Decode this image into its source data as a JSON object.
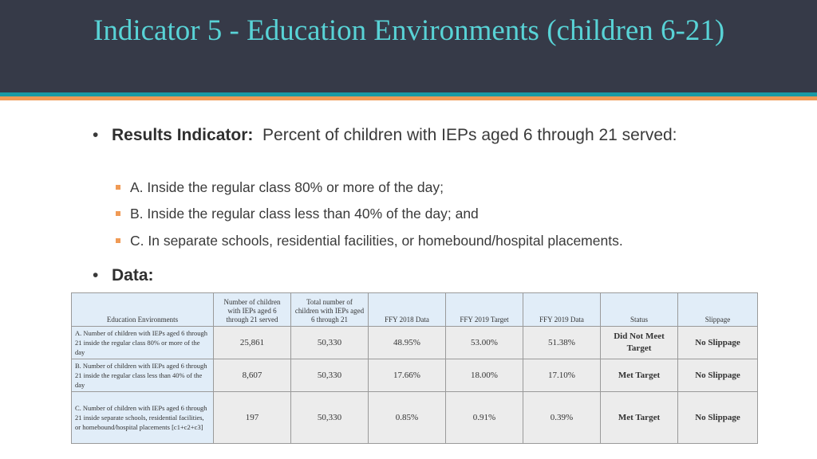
{
  "slide": {
    "title": "Indicator 5 - Education Environments (children 6-21)"
  },
  "colors": {
    "header_bg": "#363a48",
    "title": "#58d3d6",
    "stripe_teal": "#1a9aa5",
    "stripe_orange": "#f09a55",
    "status_red": "#e0201b",
    "status_green": "#2aa43a"
  },
  "results": {
    "label": "Results Indicator:",
    "text": "Percent of children with IEPs aged 6 through 21 served:",
    "items": [
      "A.  Inside the regular class 80% or more of the day;",
      "B.  Inside the regular class less than 40% of the day; and",
      "C.  In separate schools, residential facilities, or homebound/hospital placements."
    ]
  },
  "data_label": "Data:",
  "table": {
    "headers": [
      "Education Environments",
      "Number of children with IEPs aged 6 through 21 served",
      "Total number of children with IEPs aged 6 through 21",
      "FFY 2018 Data",
      "FFY 2019 Target",
      "FFY 2019 Data",
      "Status",
      "Slippage"
    ],
    "rows": [
      {
        "label": "A. Number of children with IEPs aged 6 through 21 inside the regular class 80% or more of the day",
        "served": "25,861",
        "total": "50,330",
        "ffy2018": "48.95%",
        "target2019": "53.00%",
        "ffy2019": "51.38%",
        "status": "Did Not Meet Target",
        "slippage": "No Slippage"
      },
      {
        "label": "B. Number of children with IEPs aged 6 through 21 inside the regular class less than 40% of the day",
        "served": "8,607",
        "total": "50,330",
        "ffy2018": "17.66%",
        "target2019": "18.00%",
        "ffy2019": "17.10%",
        "status": "Met Target",
        "slippage": "No Slippage"
      },
      {
        "label": "C. Number of children with IEPs aged 6 through 21 inside separate schools, residential facilities, or homebound/hospital placements [c1+c2+c3]",
        "served": "197",
        "total": "50,330",
        "ffy2018": "0.85%",
        "target2019": "0.91%",
        "ffy2019": "0.39%",
        "status": "Met Target",
        "slippage": "No Slippage"
      }
    ]
  }
}
